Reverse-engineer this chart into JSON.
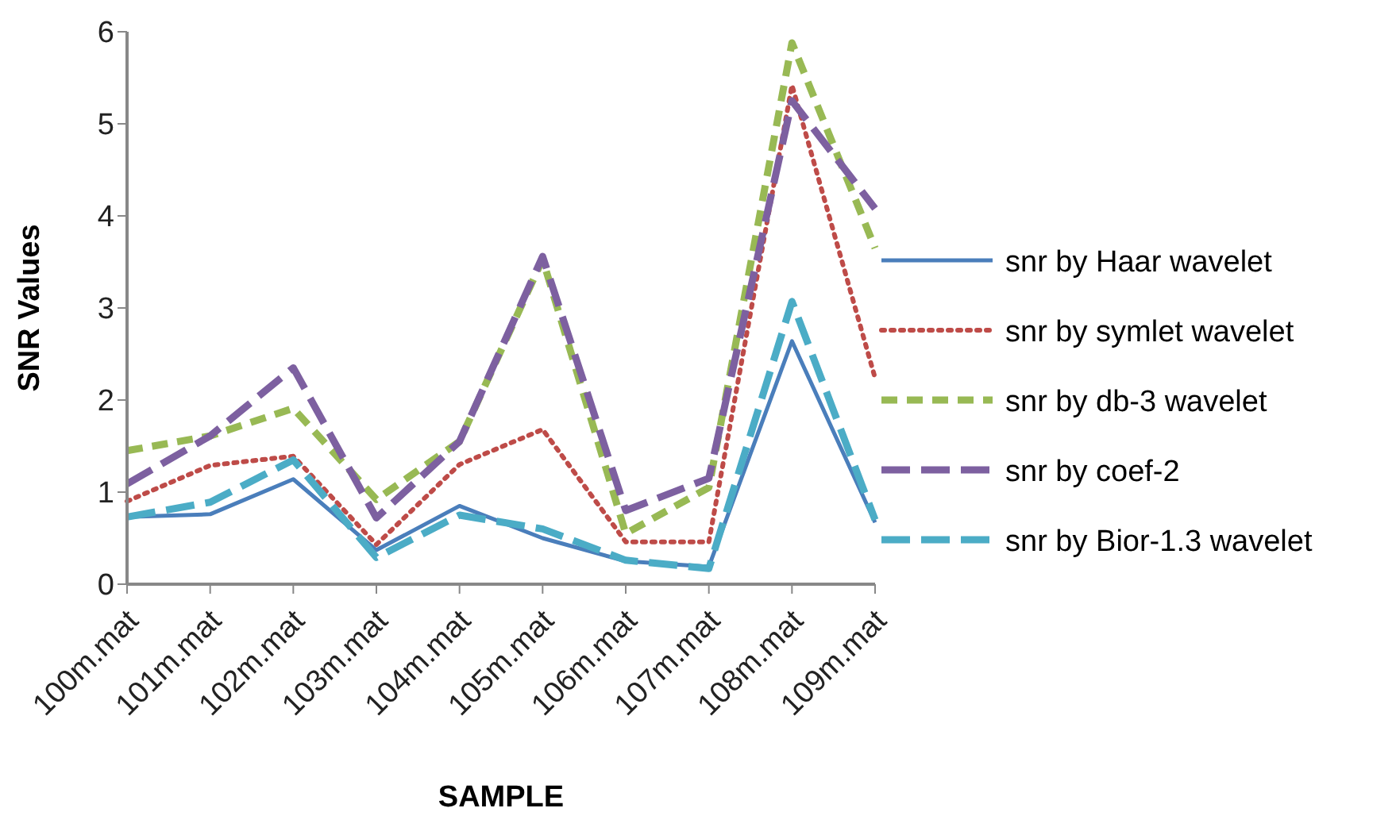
{
  "chart_data": {
    "type": "line",
    "xlabel": "SAMPLE",
    "ylabel": "SNR Values",
    "categories": [
      "100m.mat",
      "101m.mat",
      "102m.mat",
      "103m.mat",
      "104m.mat",
      "105m.mat",
      "106m.mat",
      "107m.mat",
      "108m.mat",
      "109m.mat"
    ],
    "series": [
      {
        "name": "snr by Haar wavelet",
        "color": "#4a7ebb",
        "line_style": "solid",
        "values": [
          0.73,
          0.76,
          1.14,
          0.37,
          0.85,
          0.5,
          0.25,
          0.19,
          2.64,
          0.67
        ]
      },
      {
        "name": "snr by symlet wavelet",
        "color": "#be4b48",
        "line_style": "dotted",
        "values": [
          0.9,
          1.29,
          1.39,
          0.43,
          1.3,
          1.68,
          0.46,
          0.46,
          5.42,
          2.24
        ]
      },
      {
        "name": "snr by db-3 wavelet",
        "color": "#98b954",
        "line_style": "dashed",
        "values": [
          1.45,
          1.61,
          1.91,
          0.92,
          1.55,
          3.53,
          0.55,
          1.05,
          5.88,
          3.65
        ]
      },
      {
        "name": "snr by coef-2",
        "color": "#7d60a0",
        "line_style": "dashed",
        "values": [
          1.09,
          1.61,
          2.35,
          0.72,
          1.55,
          3.56,
          0.8,
          1.15,
          5.25,
          4.08
        ]
      },
      {
        "name": "snr by Bior-1.3 wavelet",
        "color": "#4bacc6",
        "line_style": "dashed",
        "values": [
          0.73,
          0.89,
          1.35,
          0.29,
          0.75,
          0.6,
          0.26,
          0.17,
          3.07,
          0.7
        ]
      }
    ],
    "ylim": [
      0,
      6
    ],
    "yticks": [
      0,
      1,
      2,
      3,
      4,
      5,
      6
    ],
    "grid": false,
    "legend": "right",
    "marker": "none"
  }
}
